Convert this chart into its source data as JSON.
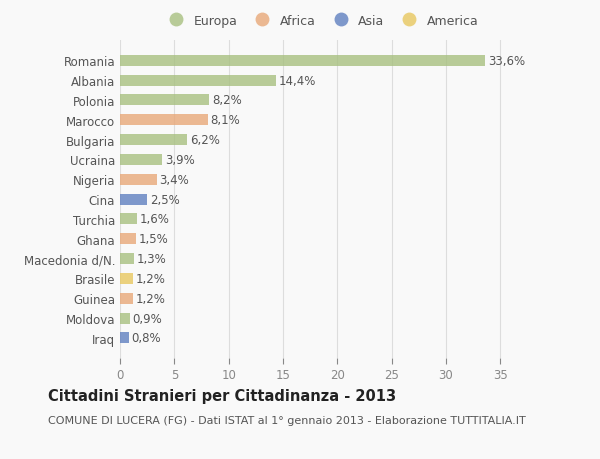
{
  "countries": [
    "Romania",
    "Albania",
    "Polonia",
    "Marocco",
    "Bulgaria",
    "Ucraina",
    "Nigeria",
    "Cina",
    "Turchia",
    "Ghana",
    "Macedonia d/N.",
    "Brasile",
    "Guinea",
    "Moldova",
    "Iraq"
  ],
  "values": [
    33.6,
    14.4,
    8.2,
    8.1,
    6.2,
    3.9,
    3.4,
    2.5,
    1.6,
    1.5,
    1.3,
    1.2,
    1.2,
    0.9,
    0.8
  ],
  "labels": [
    "33,6%",
    "14,4%",
    "8,2%",
    "8,1%",
    "6,2%",
    "3,9%",
    "3,4%",
    "2,5%",
    "1,6%",
    "1,5%",
    "1,3%",
    "1,2%",
    "1,2%",
    "0,9%",
    "0,8%"
  ],
  "continents": [
    "Europa",
    "Europa",
    "Europa",
    "Africa",
    "Europa",
    "Europa",
    "Africa",
    "Asia",
    "Europa",
    "Africa",
    "Europa",
    "America",
    "Africa",
    "Europa",
    "Asia"
  ],
  "continent_colors": {
    "Europa": "#a8c080",
    "Africa": "#e8a878",
    "Asia": "#6080c0",
    "America": "#e8c860"
  },
  "legend_items": [
    "Europa",
    "Africa",
    "Asia",
    "America"
  ],
  "xlim": [
    0,
    37
  ],
  "xticks": [
    0,
    5,
    10,
    15,
    20,
    25,
    30,
    35
  ],
  "title": "Cittadini Stranieri per Cittadinanza - 2013",
  "subtitle": "COMUNE DI LUCERA (FG) - Dati ISTAT al 1° gennaio 2013 - Elaborazione TUTTITALIA.IT",
  "bg_color": "#f9f9f9",
  "grid_color": "#dddddd",
  "bar_height": 0.55,
  "label_fontsize": 8.5,
  "title_fontsize": 10.5,
  "subtitle_fontsize": 8.0
}
